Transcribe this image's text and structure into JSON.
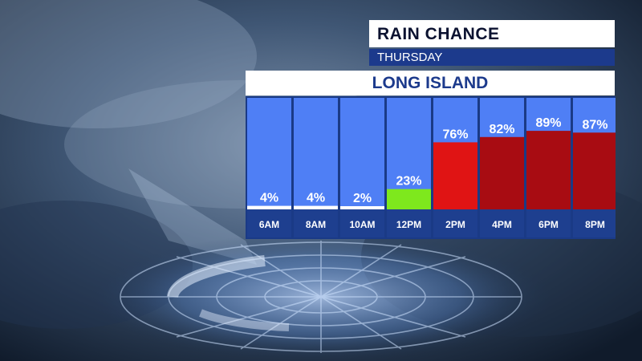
{
  "header": {
    "title": "RAIN CHANCE",
    "day": "THURSDAY",
    "region": "LONG ISLAND"
  },
  "colors": {
    "column_bg": "#4f7ff5",
    "footer": "#1e3f8f",
    "low": "#ffffff",
    "medium": "#7ee81d",
    "high": "#e01414",
    "very_high": "#a80c12"
  },
  "chart_data": {
    "type": "bar",
    "title": "RAIN CHANCE",
    "subtitle": "THURSDAY",
    "categories": [
      "6AM",
      "8AM",
      "10AM",
      "12PM",
      "2PM",
      "4PM",
      "6PM",
      "8PM"
    ],
    "values": [
      4,
      4,
      2,
      23,
      76,
      82,
      89,
      87
    ],
    "value_labels": [
      "4%",
      "4%",
      "2%",
      "23%",
      "76%",
      "82%",
      "89%",
      "87%"
    ],
    "bar_colors": [
      "#ffffff",
      "#ffffff",
      "#ffffff",
      "#7ee81d",
      "#e01414",
      "#a80c12",
      "#a80c12",
      "#a80c12"
    ],
    "ylim": [
      0,
      100
    ],
    "grid": false
  }
}
